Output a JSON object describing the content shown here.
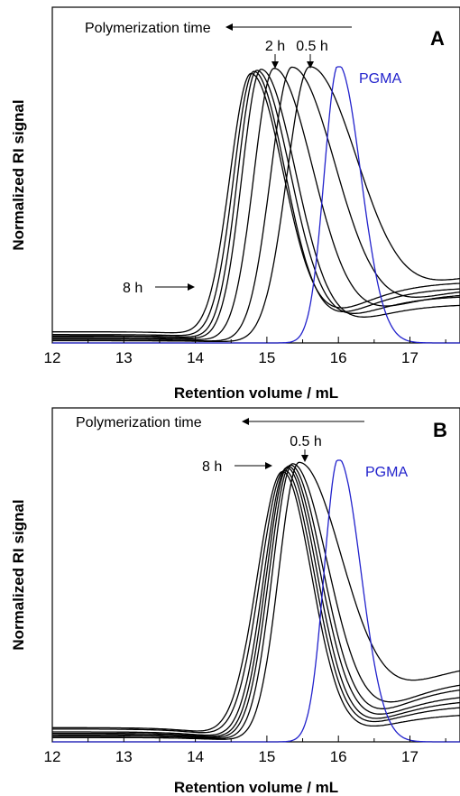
{
  "chart_data": [
    {
      "type": "line",
      "panel_label": "A",
      "xlabel": "Retention volume / mL",
      "ylabel": "Normalized RI signal",
      "xlim": [
        12,
        17.7
      ],
      "xticks": [
        "12",
        "13",
        "14",
        "15",
        "16",
        "17"
      ],
      "ylim": [
        0,
        1.05
      ],
      "grid": false,
      "annotations": {
        "arrow_text": "Polymerization time",
        "peak_labels": [
          "2 h",
          "0.5 h"
        ],
        "side_label": "8 h",
        "ref_label": "PGMA"
      },
      "series": [
        {
          "color": "#000000",
          "peak": 14.78,
          "lw": 0.42,
          "rw": 0.62,
          "base": 0.04,
          "tail": 0.22
        },
        {
          "color": "#000000",
          "peak": 14.82,
          "lw": 0.4,
          "rw": 0.6,
          "base": 0.03,
          "tail": 0.2
        },
        {
          "color": "#000000",
          "peak": 14.86,
          "lw": 0.38,
          "rw": 0.64,
          "base": 0.025,
          "tail": 0.17
        },
        {
          "color": "#000000",
          "peak": 14.92,
          "lw": 0.38,
          "rw": 0.66,
          "base": 0.02,
          "tail": 0.14
        },
        {
          "color": "#000000",
          "peak": 15.1,
          "lw": 0.4,
          "rw": 0.75,
          "base": 0.015,
          "tail": 0.18
        },
        {
          "color": "#000000",
          "peak": 15.35,
          "lw": 0.42,
          "rw": 0.85,
          "base": 0.01,
          "tail": 0.2
        },
        {
          "color": "#000000",
          "peak": 15.6,
          "lw": 0.45,
          "rw": 0.95,
          "base": 0.008,
          "tail": 0.26
        },
        {
          "color": "#2222cc",
          "name": "PGMA",
          "peak": 16.0,
          "lw": 0.28,
          "rw": 0.42,
          "base": 0.0,
          "tail": 0.0
        }
      ]
    },
    {
      "type": "line",
      "panel_label": "B",
      "xlabel": "Retention volume / mL",
      "ylabel": "Normalized RI signal",
      "xlim": [
        12,
        17.7
      ],
      "xticks": [
        "12",
        "13",
        "14",
        "15",
        "16",
        "17"
      ],
      "ylim": [
        0,
        1.05
      ],
      "grid": false,
      "annotations": {
        "arrow_text": "Polymerization time",
        "peak_labels": [
          "0.5 h"
        ],
        "side_label": "8 h",
        "ref_label": "PGMA"
      },
      "series": [
        {
          "color": "#000000",
          "peak": 15.22,
          "lw": 0.5,
          "rw": 0.55,
          "base": 0.05,
          "tail": 0.1
        },
        {
          "color": "#000000",
          "peak": 15.25,
          "lw": 0.48,
          "rw": 0.56,
          "base": 0.045,
          "tail": 0.13
        },
        {
          "color": "#000000",
          "peak": 15.28,
          "lw": 0.45,
          "rw": 0.57,
          "base": 0.035,
          "tail": 0.15
        },
        {
          "color": "#000000",
          "peak": 15.3,
          "lw": 0.43,
          "rw": 0.6,
          "base": 0.03,
          "tail": 0.17
        },
        {
          "color": "#000000",
          "peak": 15.33,
          "lw": 0.42,
          "rw": 0.62,
          "base": 0.025,
          "tail": 0.2
        },
        {
          "color": "#000000",
          "peak": 15.36,
          "lw": 0.4,
          "rw": 0.68,
          "base": 0.02,
          "tail": 0.22
        },
        {
          "color": "#000000",
          "peak": 15.45,
          "lw": 0.4,
          "rw": 0.85,
          "base": 0.015,
          "tail": 0.28
        },
        {
          "color": "#2222cc",
          "name": "PGMA",
          "peak": 16.0,
          "lw": 0.28,
          "rw": 0.42,
          "base": 0.0,
          "tail": 0.0
        }
      ]
    }
  ]
}
